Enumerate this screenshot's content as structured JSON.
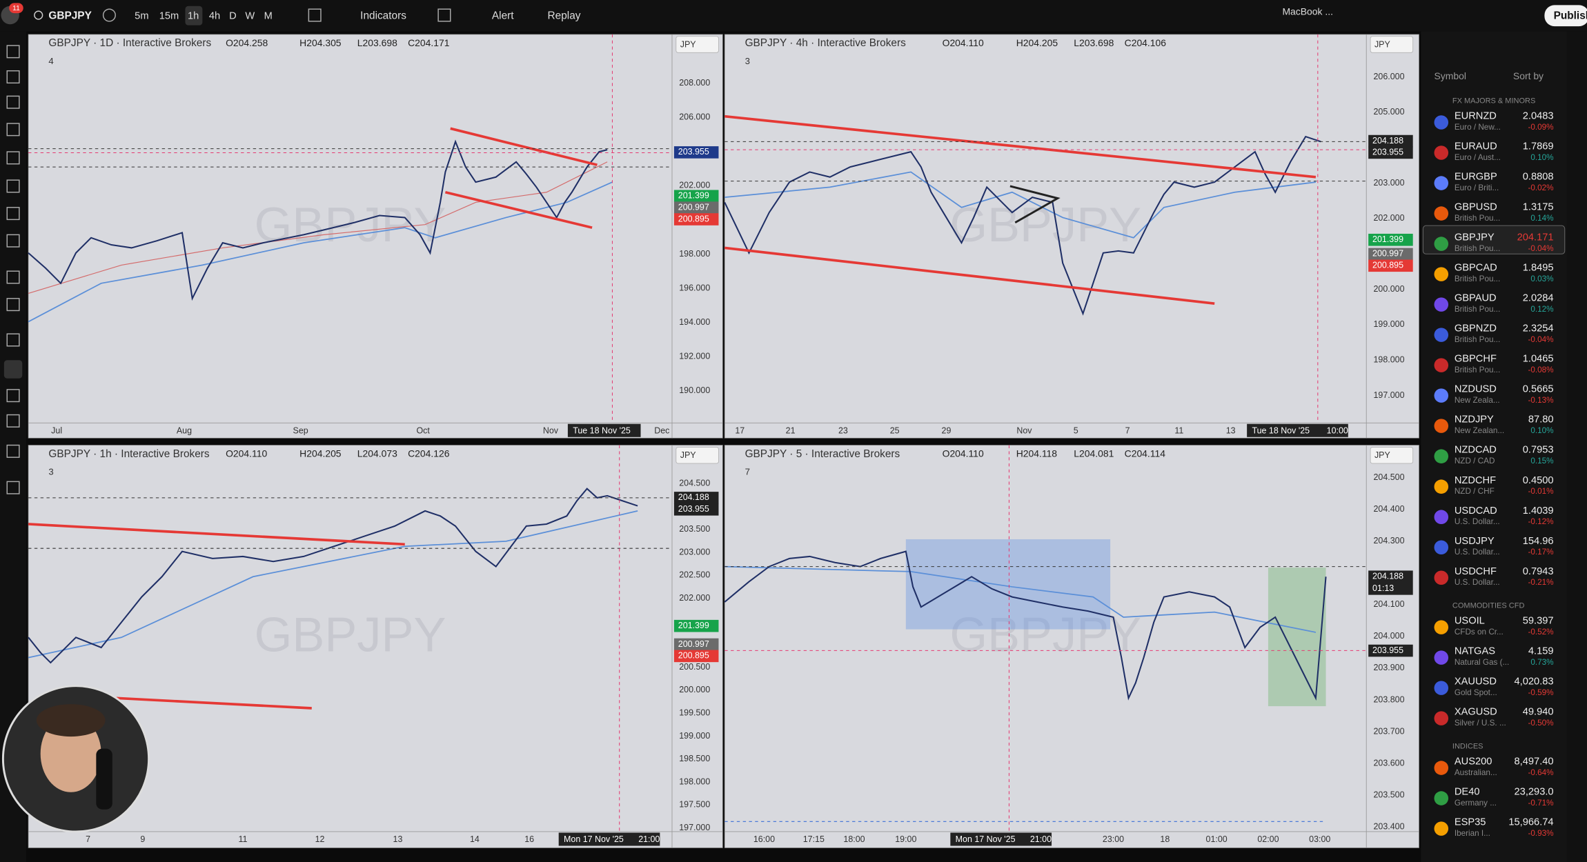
{
  "toolbar": {
    "badge": "11",
    "symbol": "GBPJPY",
    "intervals": [
      "5m",
      "15m",
      "1h",
      "4h",
      "D",
      "W",
      "M"
    ],
    "indicators": "Indicators",
    "alert": "Alert",
    "replay": "Replay",
    "device": "MacBook ...",
    "publish": "Publish"
  },
  "panels": [
    {
      "title": "GBPJPY · 1D · Interactive Brokers",
      "ohlc": [
        "O204.258",
        "H204.305",
        "L203.698",
        "C204.171"
      ],
      "count": "4",
      "currency": "JPY",
      "watermark": "GBPJPY",
      "price_axis": [
        "208.000",
        "206.000",
        "202.000",
        "198.000",
        "196.000",
        "194.000",
        "192.000",
        "190.000"
      ],
      "price_tags": [
        {
          "label": "203.955",
          "color": "#1e3a8a"
        },
        {
          "label": "201.399",
          "color": "#16a34a"
        },
        {
          "label": "200.997",
          "color": "#6b6b6b"
        },
        {
          "label": "200.895",
          "color": "#e53935"
        }
      ],
      "time_axis": [
        "Jul",
        "Aug",
        "Sep",
        "Oct",
        "Nov",
        "Dec"
      ],
      "cursor_time": "Tue 18 Nov '25"
    },
    {
      "title": "GBPJPY · 4h · Interactive Brokers",
      "ohlc": [
        "O204.110",
        "H204.205",
        "L203.698",
        "C204.106"
      ],
      "count": "3",
      "currency": "JPY",
      "watermark": "GBPJPY",
      "price_axis": [
        "206.000",
        "205.000",
        "203.000",
        "202.000",
        "200.000",
        "199.000",
        "198.000",
        "197.000"
      ],
      "price_tags": [
        {
          "label": "204.188",
          "color": "#222222"
        },
        {
          "label": "203.955",
          "color": "#222222"
        },
        {
          "label": "201.399",
          "color": "#16a34a"
        },
        {
          "label": "200.997",
          "color": "#6b6b6b"
        },
        {
          "label": "200.895",
          "color": "#e53935"
        }
      ],
      "time_axis": [
        "17",
        "21",
        "23",
        "25",
        "29",
        "Nov",
        "5",
        "7",
        "11",
        "13"
      ],
      "cursor_time": "Tue 18 Nov '25",
      "cursor_clock": "10:00"
    },
    {
      "title": "GBPJPY · 1h · Interactive Brokers",
      "ohlc": [
        "O204.110",
        "H204.205",
        "L204.073",
        "C204.126"
      ],
      "count": "3",
      "currency": "JPY",
      "watermark": "GBPJPY",
      "price_axis": [
        "204.500",
        "203.500",
        "203.000",
        "202.500",
        "202.000",
        "200.500",
        "200.000",
        "199.500",
        "199.000",
        "198.500",
        "198.000",
        "197.500",
        "197.000"
      ],
      "price_tags": [
        {
          "label": "204.188",
          "color": "#222222"
        },
        {
          "label": "203.955",
          "color": "#222222"
        },
        {
          "label": "201.399",
          "color": "#16a34a"
        },
        {
          "label": "200.997",
          "color": "#6b6b6b"
        },
        {
          "label": "200.895",
          "color": "#e53935"
        }
      ],
      "time_axis": [
        "7",
        "9",
        "11",
        "12",
        "13",
        "14",
        "16"
      ],
      "cursor_time": "Mon 17 Nov '25",
      "cursor_clock": "21:00"
    },
    {
      "title": "GBPJPY · 5 · Interactive Brokers",
      "ohlc": [
        "O204.110",
        "H204.118",
        "L204.081",
        "C204.114"
      ],
      "count": "7",
      "currency": "JPY",
      "watermark": "GBPJPY",
      "price_axis": [
        "204.500",
        "204.400",
        "204.300",
        "204.100",
        "204.000",
        "203.900",
        "203.800",
        "203.700",
        "203.600",
        "203.500",
        "203.400"
      ],
      "price_tags": [
        {
          "label": "204.188",
          "color": "#222222",
          "sub": "01:13"
        },
        {
          "label": "203.955",
          "color": "#222222"
        }
      ],
      "time_axis": [
        "16:00",
        "17:15",
        "18:00",
        "19:00",
        "23:00",
        "18",
        "01:00",
        "02:00",
        "03:00"
      ],
      "cursor_time": "Mon 17 Nov '25",
      "cursor_clock": "21:00"
    }
  ],
  "watchlist": {
    "header": "Symbol",
    "sort": "Sort by",
    "sections": [
      {
        "title": "FX MAJORS & MINORS",
        "rows": [
          [
            "EURNZD",
            "Euro / New...",
            "2.0483",
            "-0.09%"
          ],
          [
            "EURAUD",
            "Euro / Aust...",
            "1.7869",
            "0.10%"
          ],
          [
            "EURGBP",
            "Euro / Briti...",
            "0.8808",
            "-0.02%"
          ],
          [
            "GBPUSD",
            "British Pou...",
            "1.3175",
            "0.14%"
          ],
          [
            "GBPJPY",
            "British Pou...",
            "204.171",
            "-0.04%"
          ],
          [
            "GBPCAD",
            "British Pou...",
            "1.8495",
            "0.03%"
          ],
          [
            "GBPAUD",
            "British Pou...",
            "2.0284",
            "0.12%"
          ],
          [
            "GBPNZD",
            "British Pou...",
            "2.3254",
            "-0.04%"
          ],
          [
            "GBPCHF",
            "British Pou...",
            "1.0465",
            "-0.08%"
          ],
          [
            "NZDUSD",
            "New Zeala...",
            "0.5665",
            "-0.13%"
          ],
          [
            "NZDJPY",
            "New Zealan...",
            "87.80",
            "0.10%"
          ],
          [
            "NZDCAD",
            "NZD / CAD",
            "0.7953",
            "0.15%"
          ],
          [
            "NZDCHF",
            "NZD / CHF",
            "0.4500",
            "-0.01%"
          ],
          [
            "USDCAD",
            "U.S. Dollar...",
            "1.4039",
            "-0.12%"
          ],
          [
            "USDJPY",
            "U.S. Dollar...",
            "154.96",
            "-0.17%"
          ],
          [
            "USDCHF",
            "U.S. Dollar...",
            "0.7943",
            "-0.21%"
          ]
        ]
      },
      {
        "title": "COMMODITIES CFD",
        "rows": [
          [
            "USOIL",
            "CFDs on Cr...",
            "59.397",
            "-0.52%"
          ],
          [
            "NATGAS",
            "Natural Gas (...",
            "4.159",
            "0.73%"
          ],
          [
            "XAUUSD",
            "Gold Spot...",
            "4,020.83",
            "-0.59%"
          ],
          [
            "XAGUSD",
            "Silver / U.S. ...",
            "49.940",
            "-0.50%"
          ]
        ]
      },
      {
        "title": "INDICES",
        "rows": [
          [
            "AUS200",
            "Australian...",
            "8,497.40",
            "-0.64%"
          ],
          [
            "DE40",
            "Germany ...",
            "23,293.0",
            "-0.71%"
          ],
          [
            "ESP35",
            "Iberian I...",
            "15,966.74",
            "-0.93%"
          ]
        ]
      }
    ]
  }
}
